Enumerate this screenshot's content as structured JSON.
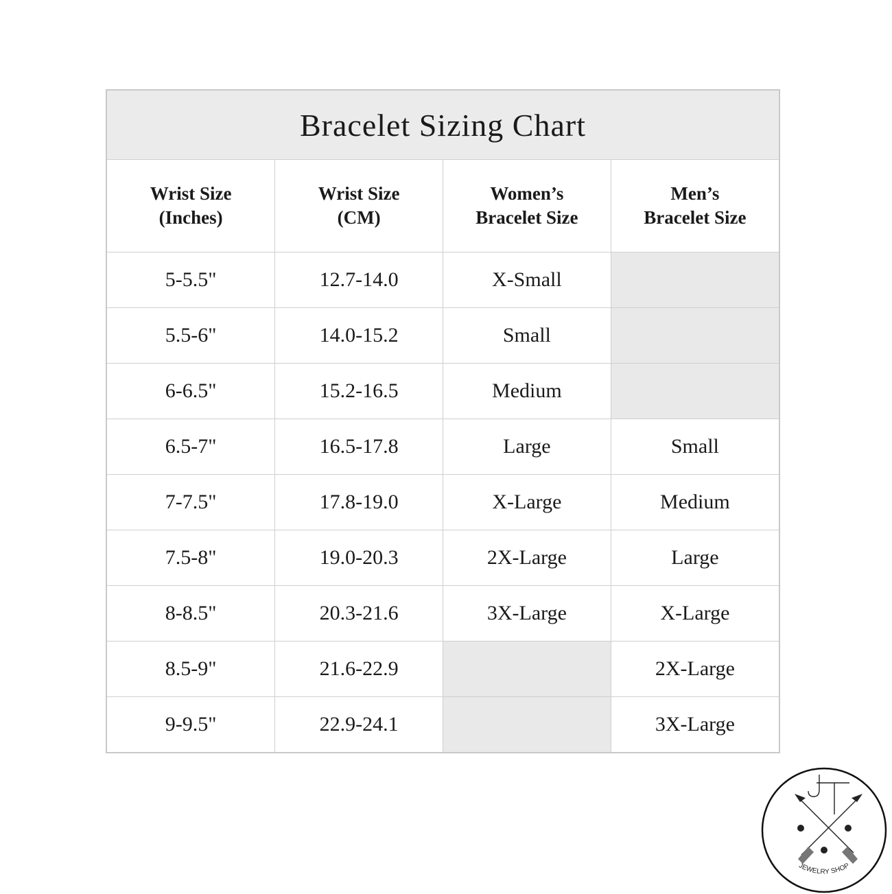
{
  "title": "Bracelet Sizing Chart",
  "columns": [
    {
      "line1": "Wrist Size",
      "line2": "(Inches)"
    },
    {
      "line1": "Wrist Size",
      "line2": "(CM)"
    },
    {
      "line1": "Women’s",
      "line2": "Bracelet Size"
    },
    {
      "line1": "Men’s",
      "line2": "Bracelet Size"
    }
  ],
  "rows": [
    [
      "5-5.5\"",
      "12.7-14.0",
      "X-Small",
      ""
    ],
    [
      "5.5-6\"",
      "14.0-15.2",
      "Small",
      ""
    ],
    [
      "6-6.5\"",
      "15.2-16.5",
      "Medium",
      ""
    ],
    [
      "6.5-7\"",
      "16.5-17.8",
      "Large",
      "Small"
    ],
    [
      "7-7.5\"",
      "17.8-19.0",
      "X-Large",
      "Medium"
    ],
    [
      "7.5-8\"",
      "19.0-20.3",
      "2X-Large",
      "Large"
    ],
    [
      "8-8.5\"",
      "20.3-21.6",
      "3X-Large",
      "X-Large"
    ],
    [
      "8.5-9\"",
      "21.6-22.9",
      "",
      "2X-Large"
    ],
    [
      "9-9.5\"",
      "22.9-24.1",
      "",
      "3X-Large"
    ]
  ],
  "colors": {
    "title_bg": "#ebebeb",
    "empty_cell": "#e9e9e9",
    "border": "#cfcfcf"
  },
  "logo": {
    "monogram": "JT",
    "text": "JEWELRY SHOP"
  }
}
